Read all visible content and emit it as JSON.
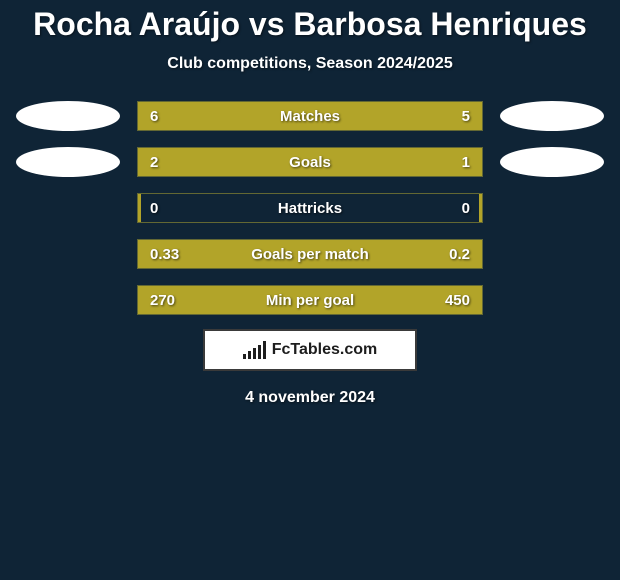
{
  "title": {
    "player1": "Rocha Araújo",
    "vs": "vs",
    "player2": "Barbosa Henriques",
    "color": "#ffffff"
  },
  "subtitle": "Club competitions, Season 2024/2025",
  "bar_color": "#b2a429",
  "row_border_color": "rgba(170,160,50,0.55)",
  "background_color": "#0f2436",
  "avatar_color": "#ffffff",
  "stats": [
    {
      "label": "Matches",
      "left_val": "6",
      "right_val": "5",
      "left_pct": 50,
      "right_pct": 50,
      "show_avatars": true
    },
    {
      "label": "Goals",
      "left_val": "2",
      "right_val": "1",
      "left_pct": 68,
      "right_pct": 32,
      "show_avatars": true
    },
    {
      "label": "Hattricks",
      "left_val": "0",
      "right_val": "0",
      "left_pct": 1,
      "right_pct": 1,
      "show_avatars": false
    },
    {
      "label": "Goals per match",
      "left_val": "0.33",
      "right_val": "0.2",
      "left_pct": 63,
      "right_pct": 37,
      "show_avatars": false
    },
    {
      "label": "Min per goal",
      "left_val": "270",
      "right_val": "450",
      "left_pct": 33,
      "right_pct": 67,
      "show_avatars": false
    }
  ],
  "logo_text": "FcTables.com",
  "logo_bar_heights": [
    5,
    8,
    11,
    14,
    18
  ],
  "date": "4 november 2024"
}
